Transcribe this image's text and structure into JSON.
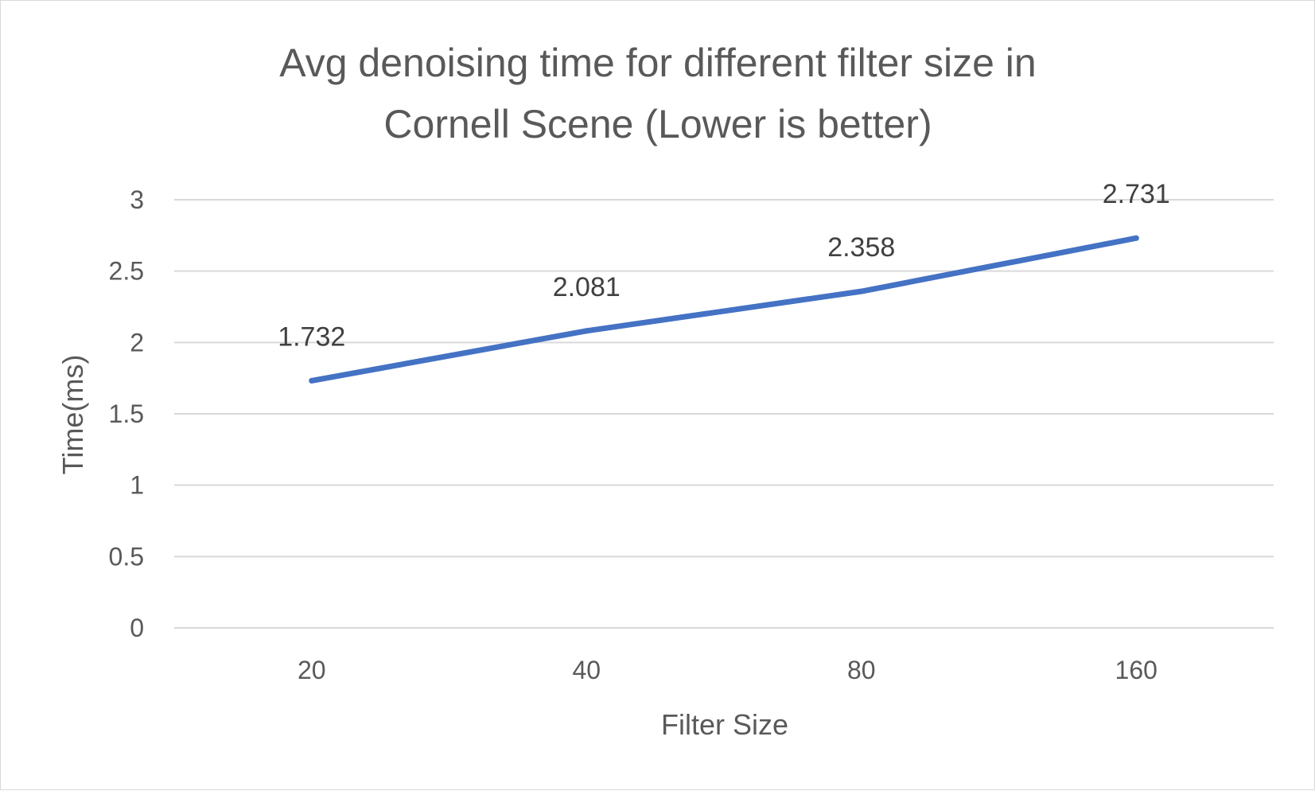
{
  "chart_data": {
    "type": "line",
    "title_lines": [
      "Avg denoising time for different filter size in",
      "Cornell Scene (Lower is better)"
    ],
    "xlabel": "Filter Size",
    "ylabel": "Time(ms)",
    "categories": [
      "20",
      "40",
      "80",
      "160"
    ],
    "series": [
      {
        "values": [
          1.732,
          2.081,
          2.358,
          2.731
        ],
        "color": "#4472c4"
      }
    ],
    "data_labels": [
      "1.732",
      "2.081",
      "2.358",
      "2.731"
    ],
    "ylim": [
      0,
      3
    ],
    "yticks": [
      0,
      0.5,
      1,
      1.5,
      2,
      2.5,
      3
    ],
    "ytick_labels": [
      "0",
      "0.5",
      "1",
      "1.5",
      "2",
      "2.5",
      "3"
    ],
    "grid": true,
    "legend": "none"
  }
}
